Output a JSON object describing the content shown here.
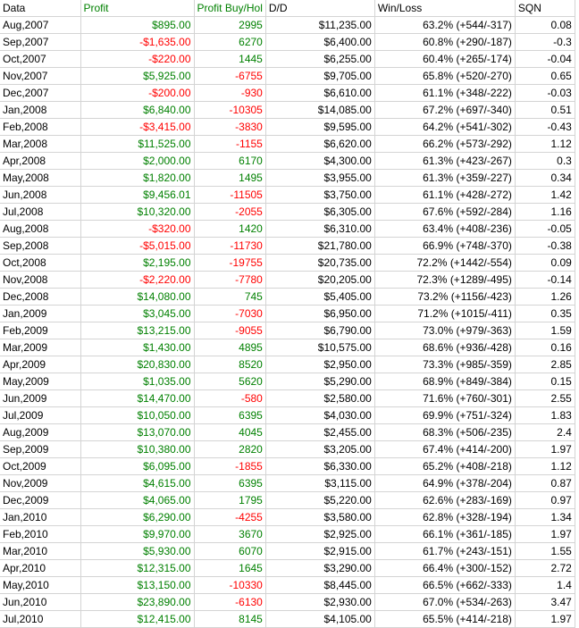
{
  "headers": [
    "Data",
    "Profit",
    "Profit Buy/Hol",
    "D/D",
    "Win/Loss",
    "SQN"
  ],
  "rows": [
    [
      "Aug,2007",
      "$895.00",
      "2995",
      "$11,235.00",
      "63.2% (+544/-317)",
      "0.08"
    ],
    [
      "Sep,2007",
      "-$1,635.00",
      "6270",
      "$6,400.00",
      "60.8% (+290/-187)",
      "-0.3"
    ],
    [
      "Oct,2007",
      "-$220.00",
      "1445",
      "$6,255.00",
      "60.4% (+265/-174)",
      "-0.04"
    ],
    [
      "Nov,2007",
      "$5,925.00",
      "-6755",
      "$9,705.00",
      "65.8% (+520/-270)",
      "0.65"
    ],
    [
      "Dec,2007",
      "-$200.00",
      "-930",
      "$6,610.00",
      "61.1% (+348/-222)",
      "-0.03"
    ],
    [
      "Jan,2008",
      "$6,840.00",
      "-10305",
      "$14,085.00",
      "67.2% (+697/-340)",
      "0.51"
    ],
    [
      "Feb,2008",
      "-$3,415.00",
      "-3830",
      "$9,595.00",
      "64.2% (+541/-302)",
      "-0.43"
    ],
    [
      "Mar,2008",
      "$11,525.00",
      "-1155",
      "$6,620.00",
      "66.2% (+573/-292)",
      "1.12"
    ],
    [
      "Apr,2008",
      "$2,000.00",
      "6170",
      "$4,300.00",
      "61.3% (+423/-267)",
      "0.3"
    ],
    [
      "May,2008",
      "$1,820.00",
      "1495",
      "$3,955.00",
      "61.3% (+359/-227)",
      "0.34"
    ],
    [
      "Jun,2008",
      "$9,456.01",
      "-11505",
      "$3,750.00",
      "61.1% (+428/-272)",
      "1.42"
    ],
    [
      "Jul,2008",
      "$10,320.00",
      "-2055",
      "$6,305.00",
      "67.6% (+592/-284)",
      "1.16"
    ],
    [
      "Aug,2008",
      "-$320.00",
      "1420",
      "$6,310.00",
      "63.4% (+408/-236)",
      "-0.05"
    ],
    [
      "Sep,2008",
      "-$5,015.00",
      "-11730",
      "$21,780.00",
      "66.9% (+748/-370)",
      "-0.38"
    ],
    [
      "Oct,2008",
      "$2,195.00",
      "-19755",
      "$20,735.00",
      "72.2% (+1442/-554)",
      "0.09"
    ],
    [
      "Nov,2008",
      "-$2,220.00",
      "-7780",
      "$20,205.00",
      "72.3% (+1289/-495)",
      "-0.14"
    ],
    [
      "Dec,2008",
      "$14,080.00",
      "745",
      "$5,405.00",
      "73.2% (+1156/-423)",
      "1.26"
    ],
    [
      "Jan,2009",
      "$3,045.00",
      "-7030",
      "$6,950.00",
      "71.2% (+1015/-411)",
      "0.35"
    ],
    [
      "Feb,2009",
      "$13,215.00",
      "-9055",
      "$6,790.00",
      "73.0% (+979/-363)",
      "1.59"
    ],
    [
      "Mar,2009",
      "$1,430.00",
      "4895",
      "$10,575.00",
      "68.6% (+936/-428)",
      "0.16"
    ],
    [
      "Apr,2009",
      "$20,830.00",
      "8520",
      "$2,950.00",
      "73.3% (+985/-359)",
      "2.85"
    ],
    [
      "May,2009",
      "$1,035.00",
      "5620",
      "$5,290.00",
      "68.9% (+849/-384)",
      "0.15"
    ],
    [
      "Jun,2009",
      "$14,470.00",
      "-580",
      "$2,580.00",
      "71.6% (+760/-301)",
      "2.55"
    ],
    [
      "Jul,2009",
      "$10,050.00",
      "6395",
      "$4,030.00",
      "69.9% (+751/-324)",
      "1.83"
    ],
    [
      "Aug,2009",
      "$13,070.00",
      "4045",
      "$2,455.00",
      "68.3% (+506/-235)",
      "2.4"
    ],
    [
      "Sep,2009",
      "$10,380.00",
      "2820",
      "$3,205.00",
      "67.4% (+414/-200)",
      "1.97"
    ],
    [
      "Oct,2009",
      "$6,095.00",
      "-1855",
      "$6,330.00",
      "65.2% (+408/-218)",
      "1.12"
    ],
    [
      "Nov,2009",
      "$4,615.00",
      "6395",
      "$3,115.00",
      "64.9% (+378/-204)",
      "0.87"
    ],
    [
      "Dec,2009",
      "$4,065.00",
      "1795",
      "$5,220.00",
      "62.6% (+283/-169)",
      "0.97"
    ],
    [
      "Jan,2010",
      "$6,290.00",
      "-4255",
      "$3,580.00",
      "62.8% (+328/-194)",
      "1.34"
    ],
    [
      "Feb,2010",
      "$9,970.00",
      "3670",
      "$2,925.00",
      "66.1% (+361/-185)",
      "1.97"
    ],
    [
      "Mar,2010",
      "$5,930.00",
      "6070",
      "$2,915.00",
      "61.7% (+243/-151)",
      "1.55"
    ],
    [
      "Apr,2010",
      "$12,315.00",
      "1645",
      "$3,290.00",
      "66.4% (+300/-152)",
      "2.72"
    ],
    [
      "May,2010",
      "$13,150.00",
      "-10330",
      "$8,445.00",
      "66.5% (+662/-333)",
      "1.4"
    ],
    [
      "Jun,2010",
      "$23,890.00",
      "-6130",
      "$2,930.00",
      "67.0% (+534/-263)",
      "3.47"
    ],
    [
      "Jul,2010",
      "$12,415.00",
      "8145",
      "$4,105.00",
      "65.5% (+414/-218)",
      "1.97"
    ]
  ],
  "colors": {
    "positive": "#008000",
    "negative": "#ff0000",
    "grid": "#d4d4d4"
  }
}
